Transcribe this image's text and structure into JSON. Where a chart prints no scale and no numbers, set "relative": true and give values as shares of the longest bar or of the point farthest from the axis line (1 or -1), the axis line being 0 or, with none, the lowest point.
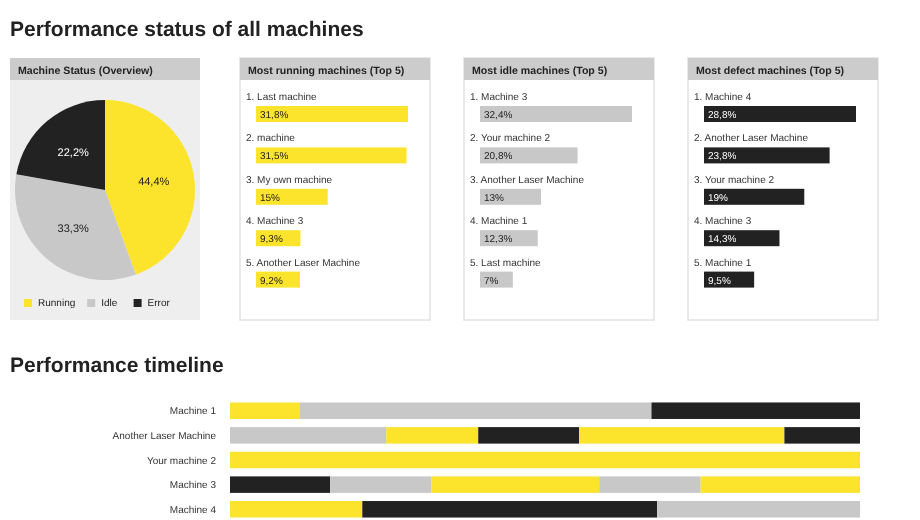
{
  "chart_data": [
    {
      "type": "pie",
      "title": "Machine Status (Overview)",
      "annotations": [
        "Performance status of all machines"
      ],
      "categories": [
        "Running",
        "Idle",
        "Error"
      ],
      "values": [
        44.4,
        33.3,
        22.2
      ],
      "colors": [
        "#fde42c",
        "#c8c8c8",
        "#222222"
      ],
      "value_labels": [
        "44,4%",
        "33,3%",
        "22,2%"
      ],
      "legend": "bottom"
    },
    {
      "type": "bar",
      "orientation": "horizontal",
      "title": "Most running machines (Top 5)",
      "categories": [
        "1. Last machine",
        "2. machine",
        "3. My own machine",
        "4. Machine 3",
        "5. Another Laser Machine"
      ],
      "values": [
        31.8,
        31.5,
        15,
        9.3,
        9.2
      ],
      "color": "#fde42c",
      "value_labels": [
        "31,8%",
        "31,5%",
        "15%",
        "9,3%",
        "9,2%"
      ]
    },
    {
      "type": "bar",
      "orientation": "horizontal",
      "title": "Most idle machines (Top 5)",
      "categories": [
        "1. Machine 3",
        "2. Your machine 2",
        "3. Another Laser Machine",
        "4. Machine 1",
        "5. Last machine"
      ],
      "values": [
        32.4,
        20.8,
        13,
        12.3,
        7
      ],
      "color": "#c8c8c8",
      "value_labels": [
        "32,4%",
        "20,8%",
        "13%",
        "12,3%",
        "7%"
      ]
    },
    {
      "type": "bar",
      "orientation": "horizontal",
      "title": "Most defect machines (Top 5)",
      "categories": [
        "1. Machine 4",
        "2. Another Laser Machine",
        "3. Your machine 2",
        "4. Machine 3",
        "5. Machine 1"
      ],
      "values": [
        28.8,
        23.8,
        19,
        14.3,
        9.5
      ],
      "color": "#222222",
      "value_labels": [
        "28,8%",
        "23,8%",
        "19%",
        "14,3%",
        "9,5%"
      ]
    },
    {
      "type": "bar",
      "orientation": "horizontal",
      "stacked": true,
      "relative": true,
      "title": "Performance timeline",
      "categories": [
        "Machine 1",
        "Another Laser Machine",
        "Your machine 2",
        "Machine 3",
        "Machine 4"
      ],
      "series": [
        {
          "values": [
            0.111,
            0.248,
            1,
            0.159,
            0.21
          ],
          "colors": [
            "#fde42c",
            "#c8c8c8",
            "#fde42c",
            "#222222",
            "#fde42c"
          ]
        },
        {
          "values": [
            0.558,
            0.146,
            null,
            0.161,
            0.468
          ],
          "colors": [
            "#c8c8c8",
            "#fde42c",
            null,
            "#c8c8c8",
            "#222222"
          ]
        },
        {
          "values": [
            0.331,
            0.16,
            null,
            0.266,
            0.322
          ],
          "colors": [
            "#222222",
            "#222222",
            null,
            "#fde42c",
            "#c8c8c8"
          ]
        },
        {
          "values": [
            null,
            0.326,
            null,
            0.161,
            null
          ],
          "colors": [
            null,
            "#fde42c",
            null,
            "#c8c8c8",
            null
          ]
        },
        {
          "values": [
            null,
            0.12,
            null,
            0.253,
            null
          ],
          "colors": [
            null,
            "#222222",
            null,
            "#fde42c",
            null
          ]
        }
      ]
    }
  ]
}
